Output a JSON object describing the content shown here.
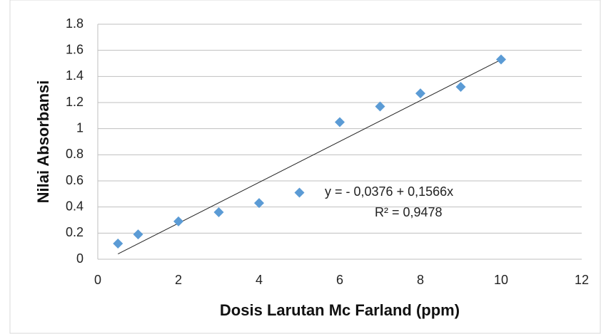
{
  "chart_data": {
    "type": "scatter",
    "x_label": "Dosis Larutan Mc Farland (ppm)",
    "y_label": "Nilai Absorbansi",
    "x": [
      0.5,
      1,
      2,
      3,
      4,
      5,
      6,
      7,
      8,
      9,
      10
    ],
    "values": [
      0.12,
      0.19,
      0.29,
      0.36,
      0.43,
      0.51,
      1.05,
      1.17,
      1.27,
      1.32,
      1.53
    ],
    "color": "#5b9bd5",
    "xlim": [
      0,
      12
    ],
    "xticks": [
      0,
      2,
      4,
      6,
      8,
      10,
      12
    ],
    "ylim": [
      0,
      1.8
    ],
    "yticks": [
      0,
      0.2,
      0.4,
      0.6,
      0.8,
      1,
      1.2,
      1.4,
      1.6,
      1.8
    ],
    "grid": true,
    "trendline": {
      "intercept": -0.0376,
      "slope": 0.1566,
      "label": "y = - 0,0376 + 0,1566x",
      "r2_label": "R² = 0,9478"
    }
  }
}
